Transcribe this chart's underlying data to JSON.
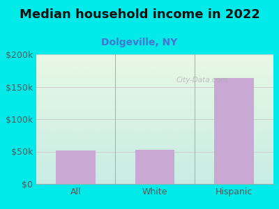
{
  "title": "Median household income in 2022",
  "subtitle": "Dolgeville, NY",
  "categories": [
    "All",
    "White",
    "Hispanic"
  ],
  "values": [
    52000,
    53000,
    163000
  ],
  "bar_color": "#c9a8d4",
  "ylim": [
    0,
    200000
  ],
  "yticks": [
    0,
    50000,
    100000,
    150000,
    200000
  ],
  "ytick_labels": [
    "$0",
    "$50k",
    "$100k",
    "$150k",
    "$200k"
  ],
  "bg_outer": "#00eaea",
  "bg_plot_top_left": "#e8f5e4",
  "bg_plot_bottom_right": "#c8ece8",
  "title_fontsize": 13,
  "subtitle_fontsize": 10,
  "subtitle_color": "#4477cc",
  "tick_color": "#555555",
  "axis_label_fontsize": 9,
  "watermark": "City-Data.com",
  "gridline_color": "#cccccc"
}
